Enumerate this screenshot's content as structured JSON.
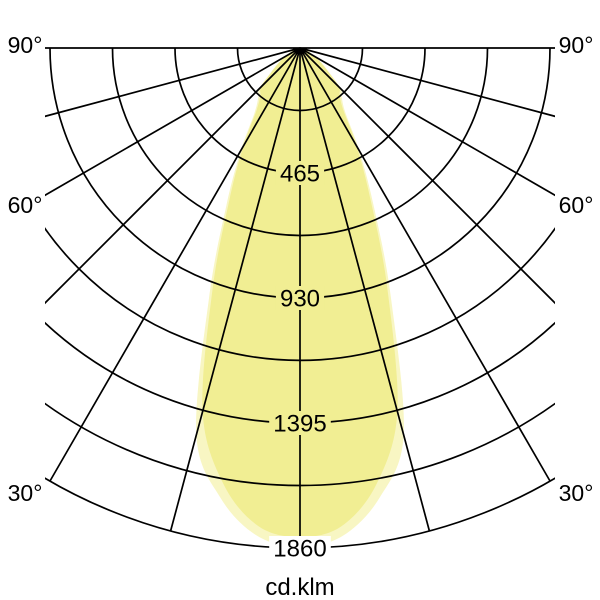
{
  "chart_data": {
    "type": "polar_photometric",
    "unit_label": "cd.klm",
    "angle_unit": "degrees",
    "angle_grid_step_deg": 15,
    "angle_axis_max_deg": 90,
    "symmetric": true,
    "grid_color": "#000000",
    "max_value": 1860,
    "angle_labels": [
      {
        "deg": 90,
        "text": "90°"
      },
      {
        "deg": 60,
        "text": "60°"
      },
      {
        "deg": 30,
        "text": "30°"
      }
    ],
    "rings": {
      "step": 232.5,
      "values": [
        232.5,
        465,
        697.5,
        930,
        1162.5,
        1395,
        1627.5,
        1860
      ],
      "labeled": [
        {
          "value": 465,
          "text": "465",
          "bg": "#F1EE93"
        },
        {
          "value": 930,
          "text": "930",
          "bg": "#F1EE93"
        },
        {
          "value": 1395,
          "text": "1395",
          "bg": "#F1EE93"
        },
        {
          "value": 1860,
          "text": "1860",
          "bg": "#FFFFFF"
        }
      ]
    },
    "series": [
      {
        "name": "beam-lobe-wide-plane",
        "fill": "#F8F6C3",
        "angles_deg": [
          0,
          5,
          10,
          15,
          20,
          25,
          30,
          35,
          40,
          45,
          50,
          55,
          60,
          65,
          70,
          75,
          80,
          85,
          90
        ],
        "values_cd_per_klm": [
          1855,
          1822,
          1700,
          1490,
          990,
          650,
          440,
          295,
          242,
          215,
          142,
          100,
          66,
          45,
          28,
          17,
          9,
          4,
          0
        ]
      },
      {
        "name": "beam-lobe-main-plane",
        "fill": "#F1EE93",
        "angles_deg": [
          0,
          5,
          10,
          15,
          20,
          25,
          30,
          35,
          40,
          45,
          50,
          55,
          60,
          65,
          70,
          75,
          80,
          85,
          90
        ],
        "values_cd_per_klm": [
          1820,
          1785,
          1645,
          1400,
          950,
          620,
          420,
          280,
          230,
          205,
          135,
          95,
          62,
          42,
          26,
          15,
          8,
          3,
          0
        ]
      }
    ]
  }
}
